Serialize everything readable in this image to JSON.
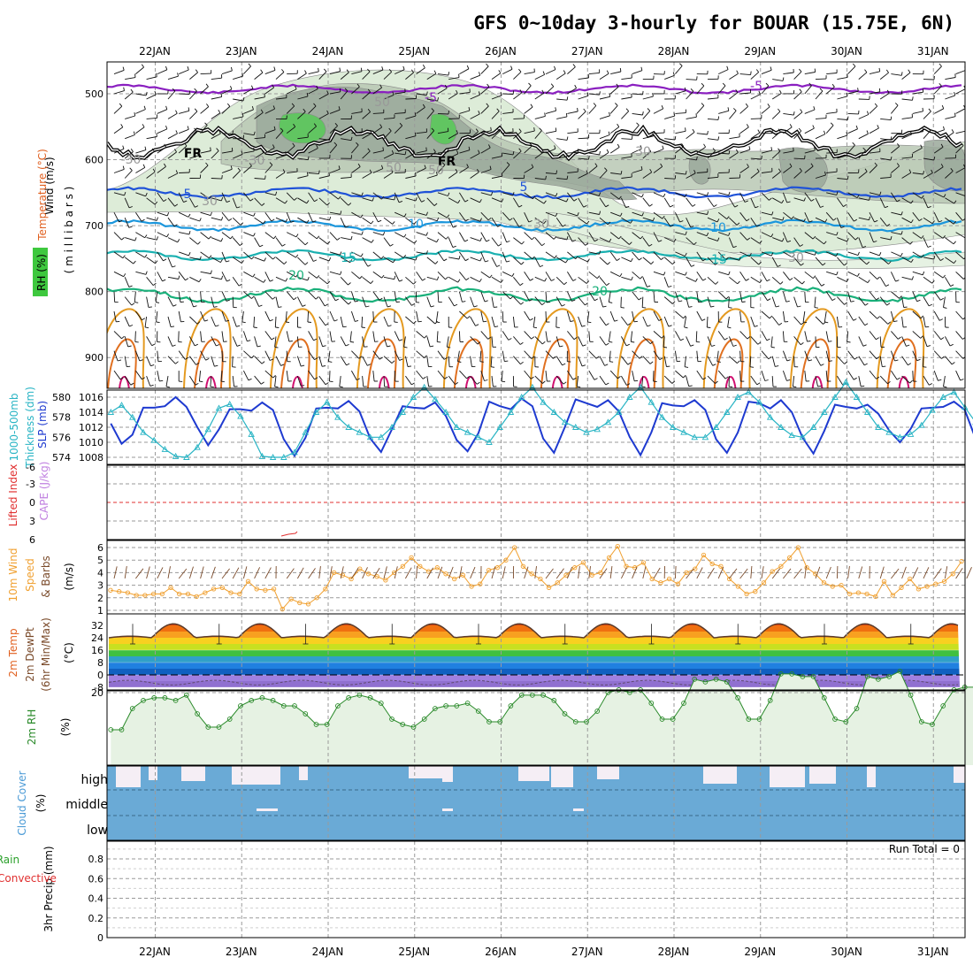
{
  "title": "GFS 0~10day 3-hourly for BOUAR (15.75E, 6N)",
  "dates": [
    "22JAN",
    "23JAN",
    "24JAN",
    "25JAN",
    "26JAN",
    "27JAN",
    "28JAN",
    "29JAN",
    "30JAN",
    "31JAN"
  ],
  "run_total": "Run Total = 0",
  "colors": {
    "grid": "#9a9a9a",
    "purple": "#8a1fc0",
    "blue": "#1f52d8",
    "lightblue": "#1b96dc",
    "teal": "#19b0b0",
    "green": "#19b07a",
    "orange": "#e49a20",
    "rh_fill": "#e3f1e0",
    "rh_dark": "#9aa89a",
    "rh_bright": "#5ac85a",
    "cloud": "#6aaad6"
  },
  "panels": {
    "upper": {
      "labels": [
        {
          "t": "Wind (m/s)",
          "c": "#000"
        },
        {
          "t": "Temperature (°C)",
          "c": "#e06020"
        },
        {
          "t": "RH (%)",
          "c": "#000"
        },
        {
          "t": "( m i l l i b a r s )",
          "c": "#000"
        }
      ],
      "yticks": [
        "500",
        "600",
        "700",
        "800",
        "900"
      ],
      "contour_labels": [
        "-5",
        "-5",
        "FR",
        "FR",
        "5",
        "5",
        "10",
        "10",
        "15",
        "15",
        "20",
        "20",
        "50",
        "50",
        "50",
        "30",
        "30",
        "30",
        "30",
        "-30",
        "-30"
      ]
    },
    "slp": {
      "label1": "1000-500mb",
      "label2": "Thickness (dm)",
      "label3": "SLP (mb)",
      "left_ticks": [
        "580",
        "578",
        "576",
        "574"
      ],
      "right_ticks": [
        "1016",
        "1014",
        "1012",
        "1010",
        "1008"
      ]
    },
    "cape": {
      "label1": "Lifted Index",
      "label2": "CAPE (J/kg)",
      "ticks": [
        "-6",
        "-3",
        "0",
        "3",
        "6"
      ]
    },
    "wind10": {
      "label1": "10m Wind",
      "label2": "Speed",
      "label3": "& Barbs",
      "unit": "(m/s)",
      "ticks": [
        "6",
        "5",
        "4",
        "3",
        "2",
        "1"
      ]
    },
    "temp2m": {
      "label1": "2m Temp",
      "label2": "2m DewPt",
      "label3": "(6hr Min/Max)",
      "unit": "(°C)",
      "ticks": [
        "32",
        "24",
        "16",
        "8",
        "0",
        "-8"
      ]
    },
    "rh2m": {
      "label": "2m RH",
      "unit": "(%)",
      "ticks": [
        "20"
      ]
    },
    "cloud": {
      "label": "Cloud Cover",
      "unit": "(%)",
      "levels": [
        "high",
        "middle",
        "low"
      ]
    },
    "precip": {
      "label1": "3hr Precip (mm)",
      "label2": "Total / Rain",
      "label3": "Convective",
      "ticks": [
        "0.8",
        "0.6",
        "0.4",
        "0.2",
        "0"
      ]
    }
  },
  "chart_data": [
    {
      "type": "line",
      "title": "1000-500mb Thickness (dm) / SLP (mb)",
      "x_unit": "3-hourly steps from 21JAN 12Z",
      "series": [
        {
          "name": "SLP (mb)",
          "values": [
            1012.5,
            1009.8,
            1011,
            1014.6,
            1014.6,
            1014.8,
            1016,
            1014.7,
            1012,
            1009.6,
            1011.7,
            1014.4,
            1014.4,
            1014.2,
            1015.3,
            1014.3,
            1010.4,
            1008.2,
            1010.6,
            1014.5,
            1014.6,
            1014.5,
            1015.5,
            1014.1,
            1010.5,
            1008.7,
            1011.7,
            1014.8,
            1014.6,
            1014.5,
            1015.3,
            1013.5,
            1010.3,
            1008.8,
            1011.2,
            1015.4,
            1014.8,
            1014.4,
            1015.8,
            1014.8,
            1010.5,
            1008.6,
            1012,
            1015.7,
            1015.2,
            1014.7,
            1015.6,
            1014.1,
            1010.7,
            1008.3,
            1011.3,
            1015.2,
            1014.9,
            1014.8,
            1015.6,
            1014.3,
            1010.4,
            1008.6,
            1011.3,
            1015.4,
            1015.2,
            1014.5,
            1015.6,
            1014,
            1010.6,
            1008.5,
            1011.5,
            1015,
            1014.7,
            1014.5,
            1015,
            1013.8,
            1011.6,
            1010,
            1011.8,
            1014.5,
            1014.6,
            1014.7,
            1015.4,
            1014.3,
            1010.5,
            1009.1,
            1012.1
          ]
        },
        {
          "name": "1000-500mb Thickness (dm)",
          "values": [
            578.5,
            579.2,
            578,
            576.5,
            575.7,
            574.8,
            574.1,
            574,
            575,
            576.8,
            578.9,
            579.3,
            578.1,
            576.3,
            574.1,
            574,
            574,
            574.5,
            576.5,
            578.5,
            579.5,
            578,
            577,
            576.5,
            576,
            576,
            577,
            578.5,
            580,
            581,
            579.8,
            578.5,
            577,
            576.5,
            576,
            575.5,
            577,
            578.5,
            580,
            581,
            579.5,
            578.5,
            577.5,
            577,
            576.5,
            576.8,
            577.5,
            578.5,
            580,
            581,
            579.5,
            578,
            577,
            576.5,
            576,
            576,
            577,
            578.5,
            580,
            580.5,
            579.5,
            578,
            577,
            576.2,
            576,
            577,
            578.5,
            580,
            581.5,
            580,
            578.5,
            577,
            576.5,
            576,
            576.3,
            577.2,
            578.7,
            580,
            580.5,
            579,
            577.5,
            576.8,
            576.8
          ]
        }
      ],
      "ylim_slp": [
        1008,
        1016
      ],
      "ylim_thickness": [
        574,
        580
      ]
    },
    {
      "type": "line",
      "title": "10m Wind Speed (m/s)",
      "series": [
        {
          "name": "Speed",
          "values": [
            2.6,
            2.5,
            2.4,
            2.2,
            2.2,
            2.3,
            2.3,
            2.8,
            2.3,
            2.3,
            2.1,
            2.4,
            2.7,
            2.8,
            2.4,
            2.3,
            3.3,
            2.7,
            2.6,
            2.7,
            1.1,
            1.9,
            1.6,
            1.5,
            2.0,
            2.7,
            4.0,
            3.8,
            3.5,
            4.3,
            3.9,
            3.7,
            3.4,
            4.0,
            4.5,
            5.2,
            4.5,
            4.1,
            4.4,
            3.9,
            3.5,
            3.8,
            2.9,
            3.1,
            4.2,
            4.4,
            5.0,
            6.0,
            4.5,
            3.9,
            3.5,
            2.8,
            3.2,
            3.8,
            4.4,
            4.8,
            3.8,
            4.0,
            5.2,
            6.1,
            4.5,
            4.4,
            4.8,
            3.5,
            3.2,
            3.5,
            3.1,
            4.0,
            4.3,
            5.4,
            4.7,
            4.5,
            3.5,
            2.9,
            2.3,
            2.5,
            3.2,
            4.1,
            4.5,
            5.2,
            6.0,
            4.4,
            3.9,
            3.2,
            2.9,
            3.0,
            2.3,
            2.4,
            2.3,
            2.1,
            3.3,
            2.2,
            2.8,
            3.5,
            2.7,
            2.9,
            3.1,
            3.3,
            3.9,
            4.9
          ]
        }
      ],
      "ylim": [
        1,
        6
      ]
    },
    {
      "type": "line",
      "title": "2m RH (%)",
      "series": [
        {
          "name": "2m RH",
          "values": [
            6,
            6,
            14,
            17,
            18,
            18,
            17,
            19,
            12,
            7,
            7,
            10,
            15,
            17,
            18,
            17,
            15,
            15,
            12,
            8,
            8,
            15,
            18,
            19,
            18,
            16,
            10,
            8,
            7,
            10,
            14,
            15,
            15,
            16,
            13,
            9,
            9,
            15,
            19,
            19,
            19,
            17,
            12,
            9,
            9,
            13,
            20,
            21,
            20,
            21,
            16,
            10,
            10,
            16,
            25,
            24,
            25,
            24,
            18,
            10,
            10,
            17,
            27,
            27,
            26,
            26,
            18,
            10,
            9,
            14,
            26,
            25,
            26,
            28,
            19,
            9,
            8,
            15,
            21,
            22,
            22,
            23,
            22
          ]
        }
      ],
      "ylim": [
        0,
        32
      ]
    }
  ]
}
